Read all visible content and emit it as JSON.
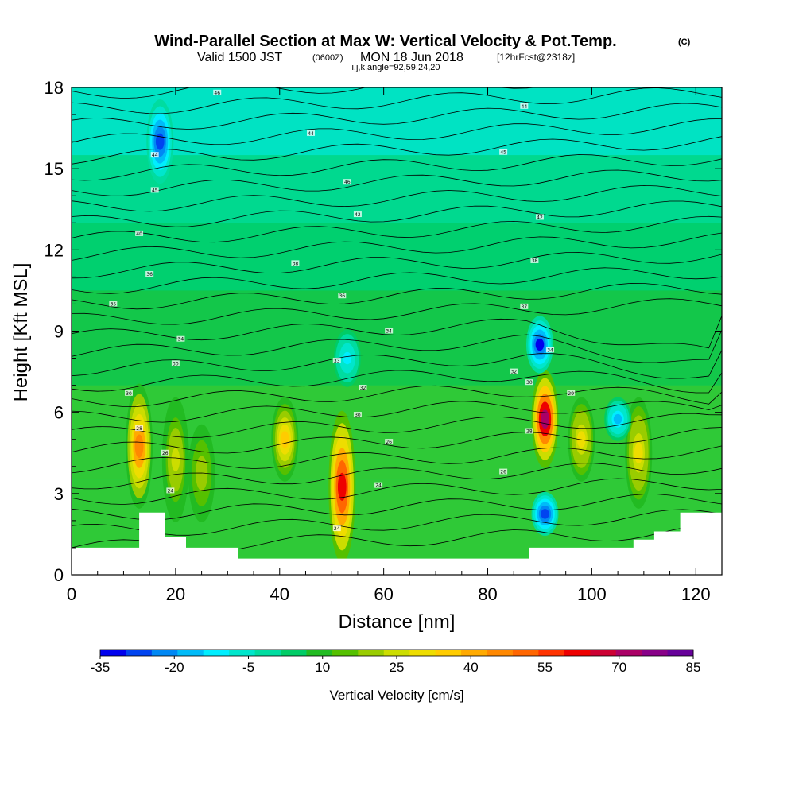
{
  "header": {
    "title": "Wind-Parallel Section at Max W: Vertical Velocity & Pot.Temp.",
    "copyright": "(C)",
    "valid_prefix": "Valid 1500 JST",
    "valid_zulu": "(0600Z)",
    "valid_date": "MON 18 Jun 2018",
    "forecast": "[12hrFcst@2318z]",
    "indices": "i,j,k,angle=92,59,24,20"
  },
  "chart_data": {
    "type": "heatmap",
    "xlabel": "Distance [nm]",
    "ylabel": "Height [Kft MSL]",
    "xlim": [
      0,
      125
    ],
    "ylim": [
      0,
      18
    ],
    "x_ticks": [
      0,
      20,
      40,
      60,
      80,
      100,
      120
    ],
    "y_ticks": [
      0,
      3,
      6,
      9,
      12,
      15,
      18
    ],
    "colorbar": {
      "label": "Vertical Velocity [cm/s]",
      "range": [
        -35,
        85
      ],
      "ticks": [
        -35,
        -20,
        -5,
        10,
        25,
        40,
        55,
        70,
        85
      ],
      "colors": [
        "#0000ee",
        "#0044f0",
        "#0088f4",
        "#00bbf8",
        "#00eeff",
        "#00e6cc",
        "#00dca0",
        "#00cc66",
        "#22bb22",
        "#55c000",
        "#99cc00",
        "#ccdd00",
        "#eedd00",
        "#ffcc00",
        "#ffaa00",
        "#ff8800",
        "#ff6600",
        "#ff3300",
        "#ee0000",
        "#cc0033",
        "#aa0066",
        "#880088",
        "#660099"
      ]
    },
    "background_velocity_cm_s": 5,
    "updrafts": [
      {
        "x": 13,
        "z_bottom": 2.5,
        "z_top": 7.0,
        "max_w": 45
      },
      {
        "x": 20,
        "z_bottom": 2.0,
        "z_top": 6.5,
        "max_w": 25
      },
      {
        "x": 25,
        "z_bottom": 2.0,
        "z_top": 5.5,
        "max_w": 20
      },
      {
        "x": 41,
        "z_bottom": 3.5,
        "z_top": 6.5,
        "max_w": 35
      },
      {
        "x": 52,
        "z_bottom": 0.5,
        "z_top": 6.0,
        "max_w": 60
      },
      {
        "x": 91,
        "z_bottom": 4.0,
        "z_top": 7.5,
        "max_w": 70
      },
      {
        "x": 98,
        "z_bottom": 3.5,
        "z_top": 6.5,
        "max_w": 30
      },
      {
        "x": 109,
        "z_bottom": 2.5,
        "z_top": 6.5,
        "max_w": 30
      }
    ],
    "downdrafts": [
      {
        "x": 17,
        "z_bottom": 14.5,
        "z_top": 17.5,
        "min_w": -25
      },
      {
        "x": 90,
        "z_bottom": 7.5,
        "z_top": 9.5,
        "min_w": -30
      },
      {
        "x": 91,
        "z_bottom": 1.5,
        "z_top": 3.0,
        "min_w": -25
      },
      {
        "x": 53,
        "z_bottom": 7.0,
        "z_top": 9.0,
        "min_w": -10
      },
      {
        "x": 105,
        "z_bottom": 5.0,
        "z_top": 6.5,
        "min_w": -15
      }
    ],
    "terrain_top_kft": [
      {
        "x": 0,
        "z": 1.0
      },
      {
        "x": 10,
        "z": 1.0
      },
      {
        "x": 12,
        "z": 1.0
      },
      {
        "x": 13,
        "z": 2.3
      },
      {
        "x": 17,
        "z": 2.3
      },
      {
        "x": 18,
        "z": 1.4
      },
      {
        "x": 22,
        "z": 1.0
      },
      {
        "x": 30,
        "z": 1.0
      },
      {
        "x": 32,
        "z": 0.6
      },
      {
        "x": 36,
        "z": 0.6
      },
      {
        "x": 75,
        "z": 0.6
      },
      {
        "x": 82,
        "z": 0.6
      },
      {
        "x": 88,
        "z": 1.0
      },
      {
        "x": 108,
        "z": 1.3
      },
      {
        "x": 112,
        "z": 1.6
      },
      {
        "x": 117,
        "z": 2.3
      },
      {
        "x": 125,
        "z": 2.3
      }
    ],
    "theta_contour_labels": [
      {
        "x": 28,
        "z": 17.8,
        "text": "46"
      },
      {
        "x": 16,
        "z": 15.5,
        "text": "44"
      },
      {
        "x": 16,
        "z": 14.2,
        "text": "45"
      },
      {
        "x": 46,
        "z": 16.3,
        "text": "44"
      },
      {
        "x": 53,
        "z": 14.5,
        "text": "46"
      },
      {
        "x": 87,
        "z": 17.3,
        "text": "44"
      },
      {
        "x": 83,
        "z": 15.6,
        "text": "45"
      },
      {
        "x": 55,
        "z": 13.3,
        "text": "42"
      },
      {
        "x": 90,
        "z": 13.2,
        "text": "42"
      },
      {
        "x": 13,
        "z": 12.6,
        "text": "40"
      },
      {
        "x": 15,
        "z": 11.1,
        "text": "36"
      },
      {
        "x": 43,
        "z": 11.5,
        "text": "38"
      },
      {
        "x": 8,
        "z": 10.0,
        "text": "35"
      },
      {
        "x": 52,
        "z": 10.3,
        "text": "36"
      },
      {
        "x": 89,
        "z": 11.6,
        "text": "38"
      },
      {
        "x": 87,
        "z": 9.9,
        "text": "37"
      },
      {
        "x": 21,
        "z": 8.7,
        "text": "34"
      },
      {
        "x": 61,
        "z": 9.0,
        "text": "34"
      },
      {
        "x": 92,
        "z": 8.3,
        "text": "34"
      },
      {
        "x": 20,
        "z": 7.8,
        "text": "30"
      },
      {
        "x": 51,
        "z": 7.9,
        "text": "33"
      },
      {
        "x": 85,
        "z": 7.5,
        "text": "32"
      },
      {
        "x": 11,
        "z": 6.7,
        "text": "30"
      },
      {
        "x": 56,
        "z": 6.9,
        "text": "32"
      },
      {
        "x": 88,
        "z": 7.1,
        "text": "30"
      },
      {
        "x": 96,
        "z": 6.7,
        "text": "29"
      },
      {
        "x": 13,
        "z": 5.4,
        "text": "28"
      },
      {
        "x": 55,
        "z": 5.9,
        "text": "30"
      },
      {
        "x": 88,
        "z": 5.3,
        "text": "28"
      },
      {
        "x": 18,
        "z": 4.5,
        "text": "26"
      },
      {
        "x": 61,
        "z": 4.9,
        "text": "26"
      },
      {
        "x": 83,
        "z": 3.8,
        "text": "26"
      },
      {
        "x": 19,
        "z": 3.1,
        "text": "24"
      },
      {
        "x": 59,
        "z": 3.3,
        "text": "24"
      },
      {
        "x": 51,
        "z": 1.7,
        "text": "24"
      }
    ]
  }
}
